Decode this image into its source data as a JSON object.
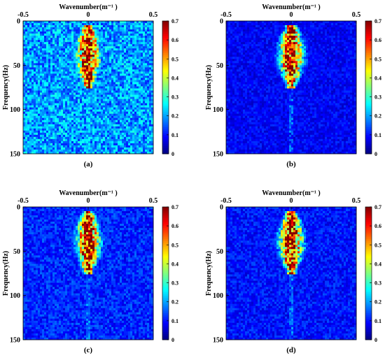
{
  "chart_data": [
    {
      "type": "heatmap",
      "panel_label": "(a)",
      "xlabel": "Wavenumber(m⁻¹ )",
      "ylabel": "Frequency(Hz)",
      "xlim": [
        -0.5,
        0.5
      ],
      "ylim": [
        0,
        150
      ],
      "x_ticks": [
        "-0.5",
        "0",
        "0.5"
      ],
      "y_ticks": [
        "0",
        "50",
        "100",
        "150"
      ],
      "colorbar": {
        "range": [
          0,
          0.7
        ],
        "ticks": [
          "0.7",
          "0.6",
          "0.5",
          "0.4",
          "0.3",
          "0.2",
          "0.1",
          "0"
        ]
      },
      "energy_region": {
        "wavenumber_center": 0,
        "wavenumber_halfwidth_max": 0.12,
        "frequency_range": [
          8,
          72
        ],
        "peak_amplitude": 0.7
      },
      "background_level": 0.28,
      "x_axis_position": "top",
      "y_axis_inverted": true
    },
    {
      "type": "heatmap",
      "panel_label": "(b)",
      "xlabel": "Wavenumber(m⁻¹ )",
      "ylabel": "Frequency(Hz)",
      "xlim": [
        -0.5,
        0.5
      ],
      "ylim": [
        0,
        150
      ],
      "x_ticks": [
        "-0.5",
        "0",
        "0.5"
      ],
      "y_ticks": [
        "0",
        "50",
        "100",
        "150"
      ],
      "colorbar": {
        "range": [
          0,
          0.7
        ],
        "ticks": [
          "0.7",
          "0.6",
          "0.5",
          "0.4",
          "0.3",
          "0.2",
          "0.1",
          "0"
        ]
      },
      "energy_region": {
        "wavenumber_center": 0,
        "wavenumber_halfwidth_max": 0.12,
        "frequency_range": [
          8,
          72
        ],
        "peak_amplitude": 0.7
      },
      "background_level": 0.12,
      "x_axis_position": "top",
      "y_axis_inverted": true
    },
    {
      "type": "heatmap",
      "panel_label": "(c)",
      "xlabel": "Wavenumber(m⁻¹ )",
      "ylabel": "Frequency(Hz)",
      "xlim": [
        -0.5,
        0.5
      ],
      "ylim": [
        0,
        150
      ],
      "x_ticks": [
        "-0.5",
        "0",
        "0.5"
      ],
      "y_ticks": [
        "0",
        "50",
        "100",
        "150"
      ],
      "colorbar": {
        "range": [
          0,
          0.7
        ],
        "ticks": [
          "0.7",
          "0.6",
          "0.5",
          "0.4",
          "0.3",
          "0.2",
          "0.1",
          "0"
        ]
      },
      "energy_region": {
        "wavenumber_center": 0,
        "wavenumber_halfwidth_max": 0.12,
        "frequency_range": [
          8,
          72
        ],
        "peak_amplitude": 0.7
      },
      "background_level": 0.16,
      "x_axis_position": "top",
      "y_axis_inverted": true
    },
    {
      "type": "heatmap",
      "panel_label": "(d)",
      "xlabel": "Wavenumber(m⁻¹ )",
      "ylabel": "Frequency(Hz)",
      "xlim": [
        -0.5,
        0.5
      ],
      "ylim": [
        0,
        150
      ],
      "x_ticks": [
        "-0.5",
        "0",
        "0.5"
      ],
      "y_ticks": [
        "0",
        "50",
        "100",
        "150"
      ],
      "colorbar": {
        "range": [
          0,
          0.7
        ],
        "ticks": [
          "0.7",
          "0.6",
          "0.5",
          "0.4",
          "0.3",
          "0.2",
          "0.1",
          "0"
        ]
      },
      "energy_region": {
        "wavenumber_center": 0,
        "wavenumber_halfwidth_max": 0.12,
        "frequency_range": [
          8,
          72
        ],
        "peak_amplitude": 0.7
      },
      "background_level": 0.14,
      "x_axis_position": "top",
      "y_axis_inverted": true
    }
  ],
  "colors": {
    "colormap": "jet",
    "axis": "#000000"
  }
}
